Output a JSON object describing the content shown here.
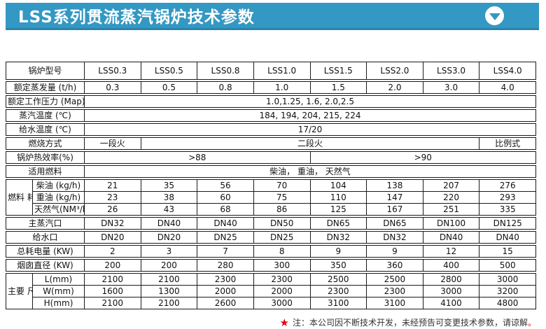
{
  "banner": {
    "title": "LSS系列贯流蒸汽锅炉技术参数",
    "bg_color": "#3398c3",
    "edge_color": "#2a84ad",
    "dropdown_icon": "chevron-down-icon"
  },
  "table": {
    "models": {
      "label": "锅炉型号",
      "values": [
        "LSS0.3",
        "LSS0.5",
        "LSS0.8",
        "LSS1.0",
        "LSS1.5",
        "LSS2.0",
        "LSS3.0",
        "LSS4.0"
      ]
    },
    "rated_evaporation": {
      "label": "额定蒸发量 (t/h)",
      "values": [
        "0.3",
        "0.5",
        "0.8",
        "1.0",
        "1.5",
        "2.0",
        "3.0",
        "4.0"
      ]
    },
    "rated_pressure": {
      "label": "额定工作压力 (Map)",
      "value": "1.0,1.25, 1.6, 2.0,2.5"
    },
    "steam_temperature": {
      "label": "蒸汽温度 (℃)",
      "value": "184, 194, 204, 215, 224"
    },
    "feedwater_temperature": {
      "label": "给水温度 (℃)",
      "value": "17/20"
    },
    "combustion_mode": {
      "label": "燃烧方式",
      "single_stage": "一段火",
      "two_stage": "二段火",
      "proportional": "比例式"
    },
    "thermal_efficiency": {
      "label": "锅炉热效率(%)",
      "low": ">88",
      "high": ">90"
    },
    "applicable_fuel": {
      "label": "适用燃料",
      "value": "柴油， 重油， 天然气"
    },
    "fuel_consumption": {
      "group_label": "燃料\n耗量",
      "diesel": {
        "label": "柴油 (kg/h)",
        "values": [
          "21",
          "35",
          "56",
          "70",
          "104",
          "138",
          "207",
          "276"
        ]
      },
      "heavy_oil": {
        "label": "重油 (kg/h)",
        "values": [
          "23",
          "38",
          "60",
          "75",
          "110",
          "147",
          "220",
          "293"
        ]
      },
      "natural_gas": {
        "label": "天然气(NM³/h)",
        "values": [
          "26",
          "43",
          "68",
          "86",
          "125",
          "167",
          "251",
          "335"
        ]
      }
    },
    "main_steam_outlet": {
      "label": "主蒸汽口",
      "values": [
        "DN32",
        "DN40",
        "DN40",
        "DN50",
        "DN65",
        "DN65",
        "DN100",
        "DN125"
      ]
    },
    "feedwater_inlet": {
      "label": "给水口",
      "values": [
        "DN20",
        "DN20",
        "DN25",
        "DN25",
        "DN32",
        "DN32",
        "DN40",
        "DN40"
      ]
    },
    "total_power": {
      "label": "总耗电量 (KW)",
      "values": [
        "2",
        "3",
        "7",
        "8",
        "9",
        "9",
        "12",
        "15"
      ]
    },
    "chimney_diameter": {
      "label": "烟囱直径 (KW)",
      "values": [
        "200",
        "200",
        "280",
        "300",
        "350",
        "360",
        "400",
        "500"
      ]
    },
    "dimensions": {
      "group_label": "主要\n尺寸",
      "length": {
        "label": "L(mm)",
        "values": [
          "2100",
          "2100",
          "2300",
          "2300",
          "2500",
          "2500",
          "2800",
          "3000"
        ]
      },
      "width": {
        "label": "W(mm)",
        "values": [
          "1600",
          "1300",
          "2000",
          "2000",
          "2300",
          "2300",
          "3000",
          "3200"
        ]
      },
      "height": {
        "label": "H(mm)",
        "values": [
          "2100",
          "2100",
          "2600",
          "3000",
          "3100",
          "3100",
          "4100",
          "4800"
        ]
      }
    }
  },
  "note": {
    "star": "★",
    "text": "注：本公司因不断技术开发，未经预告可变更技术参数，请谅解",
    "period": "。",
    "star_color": "#e60012"
  }
}
